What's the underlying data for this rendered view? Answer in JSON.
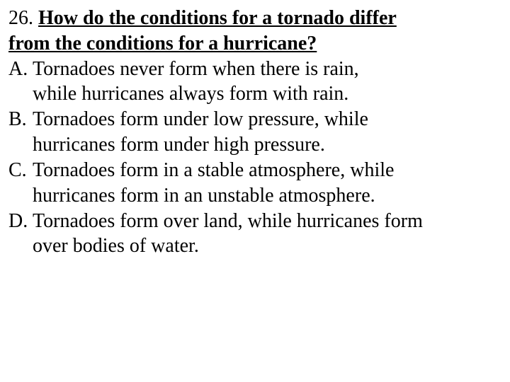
{
  "question": {
    "number": "26.",
    "text_line1": "How do the conditions for a tornado differ",
    "text_line2": "from the conditions for a hurricane?"
  },
  "options": {
    "a": {
      "letter": "A.",
      "line1": "Tornadoes never form when there is rain,",
      "line2": "while hurricanes always form with rain."
    },
    "b": {
      "letter": "B.",
      "line1": "Tornadoes form under low pressure, while",
      "line2": "hurricanes form under high pressure."
    },
    "c": {
      "letter": "C.",
      "line1": "Tornadoes form in a stable atmosphere, while",
      "line2": "hurricanes form in an unstable atmosphere."
    },
    "d": {
      "letter": "D.",
      "line1": "Tornadoes form over land, while hurricanes form",
      "line2": "over bodies of water."
    }
  },
  "style": {
    "font_family": "Times New Roman",
    "font_size_pt": 21,
    "text_color": "#000000",
    "background_color": "#ffffff"
  }
}
